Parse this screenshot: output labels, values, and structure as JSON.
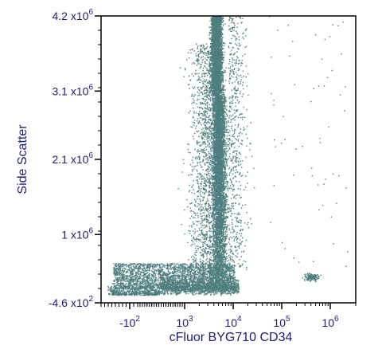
{
  "chart_data": {
    "type": "scatter",
    "title": "",
    "xlabel": "cFluor BYG710 CD34",
    "ylabel": "Side Scatter",
    "x_scale": "biexponential",
    "y_scale": "linear",
    "xlim": [
      -500,
      2000000
    ],
    "ylim": [
      -460,
      4200000
    ],
    "grid": false,
    "point_color": "#4e7e7e",
    "text_color": "#1c1c7a",
    "x_ticks": [
      {
        "value": -100,
        "base": "-10",
        "exp": "2"
      },
      {
        "value": 1000,
        "base": "10",
        "exp": "3"
      },
      {
        "value": 10000,
        "base": "10",
        "exp": "4"
      },
      {
        "value": 100000,
        "base": "10",
        "exp": "5"
      },
      {
        "value": 1000000,
        "base": "10",
        "exp": "6"
      }
    ],
    "y_ticks": [
      {
        "value": 4200000,
        "base": "4.2 x10",
        "exp": "6"
      },
      {
        "value": 3100000,
        "base": "3.1 x10",
        "exp": "6"
      },
      {
        "value": 2100000,
        "base": "2.1 x10",
        "exp": "6"
      },
      {
        "value": 1000000,
        "base": "1 x10",
        "exp": "6"
      },
      {
        "value": -460,
        "base": "-4.6 x10",
        "exp": "2"
      }
    ],
    "populations": [
      {
        "name_visible": false,
        "x_center": 5000,
        "x_spread": 3000,
        "y_min": 200000,
        "y_max": 4200000,
        "count": 9000
      },
      {
        "name_visible": false,
        "x_center": 600,
        "x_spread": 1500,
        "y_min": -460,
        "y_max": 500000,
        "count": 7000
      },
      {
        "name_visible": false,
        "x_center": 400000,
        "x_spread": 200000,
        "y_min": 300000,
        "y_max": 450000,
        "count": 150
      }
    ]
  }
}
